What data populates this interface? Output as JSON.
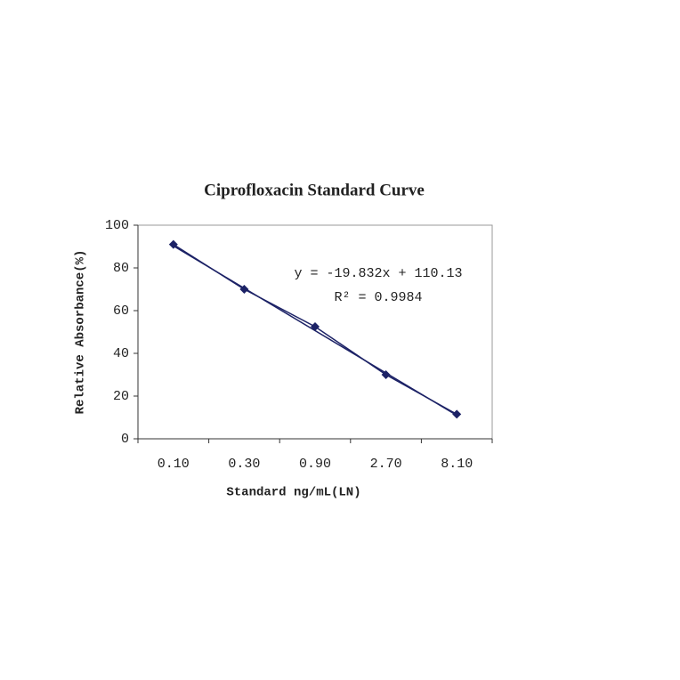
{
  "chart_data": {
    "type": "line",
    "title": "Ciprofloxacin Standard Curve",
    "x_label": "Standard ng/mL(LN)",
    "y_label": "Relative Absorbance(%)",
    "categories": [
      "0.10",
      "0.30",
      "0.90",
      "2.70",
      "8.10"
    ],
    "values": [
      91,
      70,
      52.5,
      30,
      11.5
    ],
    "color": "#1c2266",
    "ylim": [
      0,
      100
    ],
    "yticks": [
      0,
      20,
      40,
      60,
      80,
      100
    ],
    "trendline": {
      "label": "y = -19.832x + 110.13",
      "r2_label": "R² = 0.9984",
      "slope": -19.832,
      "intercept": 110.13
    }
  }
}
